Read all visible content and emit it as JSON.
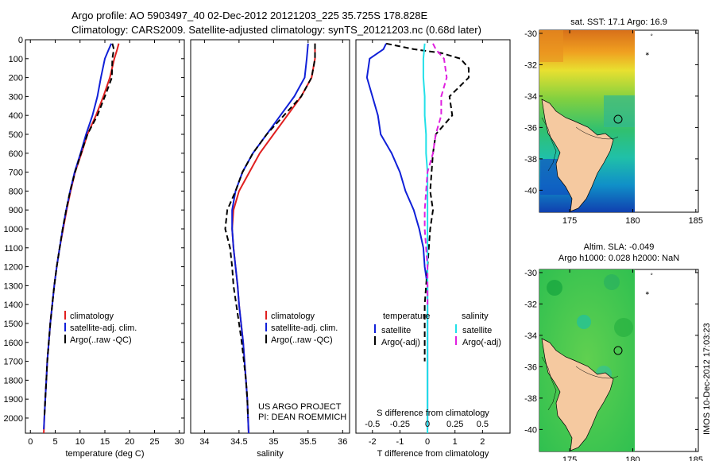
{
  "header": {
    "line1": "Argo profile: AO 5903497_40 02-Dec-2012 20121203_225 35.725S 178.828E",
    "line2": "Climatology: CARS2009. Satellite-adjusted climatology: synTS_20121203.nc (0.68d later)"
  },
  "side_label": "IMOS 10-Dec-2012 17:03:23",
  "colors": {
    "red": "#e02020",
    "blue": "#1020d8",
    "black": "#000000",
    "cyan": "#22e0e8",
    "magenta": "#e020e0",
    "land": "#f5c9a0"
  },
  "chart_data": [
    {
      "type": "line",
      "xlabel": "temperature (deg C)",
      "ylabel": "",
      "xlim": [
        -1,
        31
      ],
      "ylim": [
        2080,
        0
      ],
      "xticks": [
        0,
        5,
        10,
        15,
        20,
        25,
        30
      ],
      "yticks": [
        0,
        100,
        200,
        300,
        400,
        500,
        600,
        700,
        800,
        900,
        1000,
        1100,
        1200,
        1300,
        1400,
        1500,
        1600,
        1700,
        1800,
        1900,
        2000
      ],
      "legend": [
        "climatology",
        "satellite-adj. clim.",
        "Argo(..raw -QC)"
      ],
      "legend_position": "lower-right",
      "series": [
        {
          "name": "climatology",
          "color": "red",
          "dash": "solid",
          "points": [
            [
              17.8,
              20
            ],
            [
              17.5,
              50
            ],
            [
              16.9,
              100
            ],
            [
              16,
              200
            ],
            [
              14.7,
              300
            ],
            [
              13.2,
              400
            ],
            [
              11.5,
              500
            ],
            [
              10.3,
              600
            ],
            [
              9,
              700
            ],
            [
              8.1,
              800
            ],
            [
              7.3,
              900
            ],
            [
              6.6,
              1000
            ],
            [
              5.9,
              1100
            ],
            [
              5.3,
              1200
            ],
            [
              4.8,
              1300
            ],
            [
              4.4,
              1400
            ],
            [
              4,
              1500
            ],
            [
              3.7,
              1600
            ],
            [
              3.4,
              1700
            ],
            [
              3.2,
              1800
            ],
            [
              3,
              1900
            ],
            [
              2.8,
              2000
            ],
            [
              2.7,
              2080
            ]
          ]
        },
        {
          "name": "satellite-adj. clim.",
          "color": "blue",
          "dash": "solid",
          "points": [
            [
              16.3,
              20
            ],
            [
              15.8,
              50
            ],
            [
              15,
              100
            ],
            [
              14.2,
              200
            ],
            [
              13.5,
              300
            ],
            [
              12.5,
              400
            ],
            [
              11.2,
              500
            ],
            [
              10.1,
              600
            ],
            [
              8.9,
              700
            ],
            [
              8,
              800
            ],
            [
              7.2,
              900
            ],
            [
              6.5,
              1000
            ],
            [
              5.9,
              1100
            ],
            [
              5.3,
              1200
            ],
            [
              4.8,
              1300
            ],
            [
              4.4,
              1400
            ],
            [
              4,
              1500
            ],
            [
              3.7,
              1600
            ],
            [
              3.4,
              1700
            ],
            [
              3.2,
              1800
            ],
            [
              3,
              1900
            ],
            [
              2.8,
              2000
            ],
            [
              2.7,
              2060
            ]
          ]
        },
        {
          "name": "Argo(..raw -QC)",
          "color": "black",
          "dash": "dash",
          "points": [
            [
              16.5,
              20
            ],
            [
              16.8,
              50
            ],
            [
              16.5,
              100
            ],
            [
              16.4,
              200
            ],
            [
              15,
              300
            ],
            [
              13.5,
              400
            ],
            [
              11.5,
              500
            ],
            [
              10.2,
              600
            ],
            [
              9,
              700
            ],
            [
              8,
              800
            ],
            [
              7.2,
              900
            ],
            [
              6.5,
              1000
            ],
            [
              5.9,
              1100
            ],
            [
              5.3,
              1200
            ],
            [
              4.8,
              1300
            ],
            [
              4.4,
              1400
            ],
            [
              4,
              1500
            ],
            [
              3.7,
              1600
            ],
            [
              3.4,
              1700
            ],
            [
              3.2,
              1800
            ],
            [
              3,
              1900
            ],
            [
              2.8,
              2000
            ]
          ]
        }
      ]
    },
    {
      "type": "line",
      "xlabel": "salinity",
      "ylabel": "",
      "xlim": [
        33.8,
        36.1
      ],
      "ylim": [
        2080,
        0
      ],
      "xticks": [
        34,
        34.5,
        35,
        35.5,
        36
      ],
      "xticklabels": [
        "34",
        "34.5",
        "35",
        "35.5",
        "36"
      ],
      "legend": [
        "climatology",
        "satellite-adj. clim.",
        "Argo(..raw -QC)"
      ],
      "legend_position": "lower-right",
      "annotation": [
        "US ARGO PROJECT",
        "PI: DEAN ROEMMICH"
      ],
      "series": [
        {
          "name": "climatology",
          "color": "red",
          "dash": "solid",
          "points": [
            [
              35.6,
              20
            ],
            [
              35.6,
              100
            ],
            [
              35.55,
              200
            ],
            [
              35.4,
              300
            ],
            [
              35.2,
              400
            ],
            [
              35,
              500
            ],
            [
              34.8,
              600
            ],
            [
              34.65,
              700
            ],
            [
              34.5,
              800
            ],
            [
              34.42,
              900
            ],
            [
              34.4,
              1000
            ],
            [
              34.42,
              1100
            ],
            [
              34.45,
              1200
            ],
            [
              34.48,
              1300
            ],
            [
              34.5,
              1400
            ],
            [
              34.53,
              1500
            ],
            [
              34.56,
              1600
            ],
            [
              34.58,
              1700
            ],
            [
              34.6,
              1800
            ],
            [
              34.62,
              1900
            ],
            [
              34.63,
              2000
            ],
            [
              34.64,
              2080
            ]
          ]
        },
        {
          "name": "satellite-adj. clim.",
          "color": "blue",
          "dash": "solid",
          "points": [
            [
              35.5,
              20
            ],
            [
              35.48,
              100
            ],
            [
              35.45,
              200
            ],
            [
              35.3,
              300
            ],
            [
              35.1,
              400
            ],
            [
              34.9,
              500
            ],
            [
              34.7,
              600
            ],
            [
              34.55,
              700
            ],
            [
              34.45,
              800
            ],
            [
              34.4,
              900
            ],
            [
              34.4,
              1000
            ],
            [
              34.42,
              1100
            ],
            [
              34.45,
              1200
            ],
            [
              34.48,
              1300
            ],
            [
              34.5,
              1400
            ],
            [
              34.53,
              1500
            ],
            [
              34.56,
              1600
            ],
            [
              34.58,
              1700
            ],
            [
              34.6,
              1800
            ],
            [
              34.62,
              1900
            ],
            [
              34.63,
              2000
            ],
            [
              34.64,
              2080
            ]
          ]
        },
        {
          "name": "Argo(..raw -QC)",
          "color": "black",
          "dash": "dash",
          "points": [
            [
              35.6,
              20
            ],
            [
              35.6,
              100
            ],
            [
              35.55,
              200
            ],
            [
              35.4,
              300
            ],
            [
              35.15,
              400
            ],
            [
              34.9,
              500
            ],
            [
              34.7,
              600
            ],
            [
              34.55,
              700
            ],
            [
              34.45,
              800
            ],
            [
              34.33,
              900
            ],
            [
              34.3,
              1000
            ],
            [
              34.37,
              1100
            ],
            [
              34.4,
              1200
            ],
            [
              34.42,
              1300
            ],
            [
              34.46,
              1400
            ],
            [
              34.5,
              1500
            ],
            [
              34.54,
              1600
            ],
            [
              34.57,
              1700
            ],
            [
              34.6,
              1800
            ],
            [
              34.62,
              1900
            ],
            [
              34.63,
              2000
            ]
          ]
        }
      ]
    },
    {
      "type": "line",
      "xlabel": "T difference from climatology",
      "xlabel_top": "S difference from climatology",
      "xlim": [
        -2.6,
        3
      ],
      "ylim": [
        2080,
        0
      ],
      "xticks": [
        -2,
        -1,
        0,
        1,
        2
      ],
      "xticks_top": [
        -0.5,
        -0.25,
        0,
        0.25,
        0.5
      ],
      "legend_temperature_title": "temperature",
      "legend_salinity_title": "salinity",
      "legend": [
        "satellite",
        "Argo(-adj)",
        "satellite",
        "Argo(-adj)"
      ],
      "series": [
        {
          "name": "satellite",
          "color": "blue",
          "dash": "solid",
          "points": [
            [
              -1.5,
              20
            ],
            [
              -1.6,
              50
            ],
            [
              -2.1,
              100
            ],
            [
              -2.2,
              200
            ],
            [
              -2,
              300
            ],
            [
              -1.8,
              400
            ],
            [
              -1.7,
              500
            ],
            [
              -1.3,
              600
            ],
            [
              -1,
              700
            ],
            [
              -0.8,
              800
            ],
            [
              -0.5,
              900
            ],
            [
              -0.3,
              1000
            ],
            [
              -0.15,
              1100
            ],
            [
              -0.1,
              1200
            ],
            [
              0,
              1300
            ],
            [
              0,
              1400
            ],
            [
              0,
              1500
            ],
            [
              0,
              1600
            ],
            [
              0,
              1700
            ],
            [
              0,
              1800
            ],
            [
              0,
              1900
            ],
            [
              0,
              2000
            ],
            [
              0,
              2060
            ]
          ]
        },
        {
          "name": "Argo(-adj)",
          "color": "black",
          "dash": "dash",
          "points": [
            [
              -1.5,
              20
            ],
            [
              -0.5,
              50
            ],
            [
              0.5,
              70
            ],
            [
              1.2,
              100
            ],
            [
              1.5,
              150
            ],
            [
              1.5,
              200
            ],
            [
              0.8,
              300
            ],
            [
              0.9,
              400
            ],
            [
              0.3,
              500
            ],
            [
              0.2,
              600
            ],
            [
              0.1,
              800
            ],
            [
              0.2,
              900
            ],
            [
              0.1,
              1000
            ],
            [
              0,
              1200
            ],
            [
              -0.1,
              1400
            ],
            [
              -0.1,
              1500
            ],
            [
              -0.1,
              1700
            ]
          ]
        },
        {
          "name": "satellite",
          "color": "cyan",
          "dash": "solid",
          "points": [
            [
              -0.1,
              20
            ],
            [
              -0.15,
              100
            ],
            [
              -0.15,
              200
            ],
            [
              -0.1,
              300
            ],
            [
              -0.1,
              400
            ],
            [
              -0.05,
              500
            ],
            [
              -0.05,
              600
            ],
            [
              0,
              700
            ],
            [
              0,
              800
            ],
            [
              0,
              900
            ],
            [
              0,
              1000
            ],
            [
              0,
              1200
            ],
            [
              0,
              1400
            ],
            [
              0,
              1600
            ],
            [
              0,
              1800
            ],
            [
              0,
              2000
            ],
            [
              0,
              2080
            ]
          ]
        },
        {
          "name": "Argo(-adj)",
          "color": "magenta",
          "dash": "dash",
          "points": [
            [
              0.2,
              20
            ],
            [
              0.3,
              50
            ],
            [
              0.6,
              100
            ],
            [
              0.7,
              200
            ],
            [
              0.5,
              300
            ],
            [
              0.5,
              400
            ],
            [
              0.3,
              500
            ],
            [
              0.2,
              600
            ],
            [
              0,
              700
            ],
            [
              -0.1,
              900
            ],
            [
              -0.1,
              1000
            ],
            [
              0,
              1200
            ],
            [
              0,
              1400
            ]
          ]
        }
      ]
    },
    {
      "type": "heatmap",
      "title": "sat. SST: 17.1  Argo: 16.9",
      "xlim": [
        172.6,
        185.2
      ],
      "ylim": [
        -41.4,
        -29.8
      ],
      "xticks": [
        175,
        180,
        185
      ],
      "yticks": [
        -30,
        -32,
        -34,
        -36,
        -38,
        -40
      ],
      "marker_lon": 178.8,
      "marker_lat": -35.7
    },
    {
      "type": "heatmap",
      "title_lines": [
        "Altim. SLA: -0.049",
        "Argo h1000: 0.028 h2000: NaN"
      ],
      "xlim": [
        172.6,
        185.2
      ],
      "ylim": [
        -41.4,
        -29.8
      ],
      "xticks": [
        175,
        180,
        185
      ],
      "yticks": [
        -30,
        -32,
        -34,
        -36,
        -38,
        -40
      ],
      "marker_lon": 178.8,
      "marker_lat": -35.7
    }
  ]
}
